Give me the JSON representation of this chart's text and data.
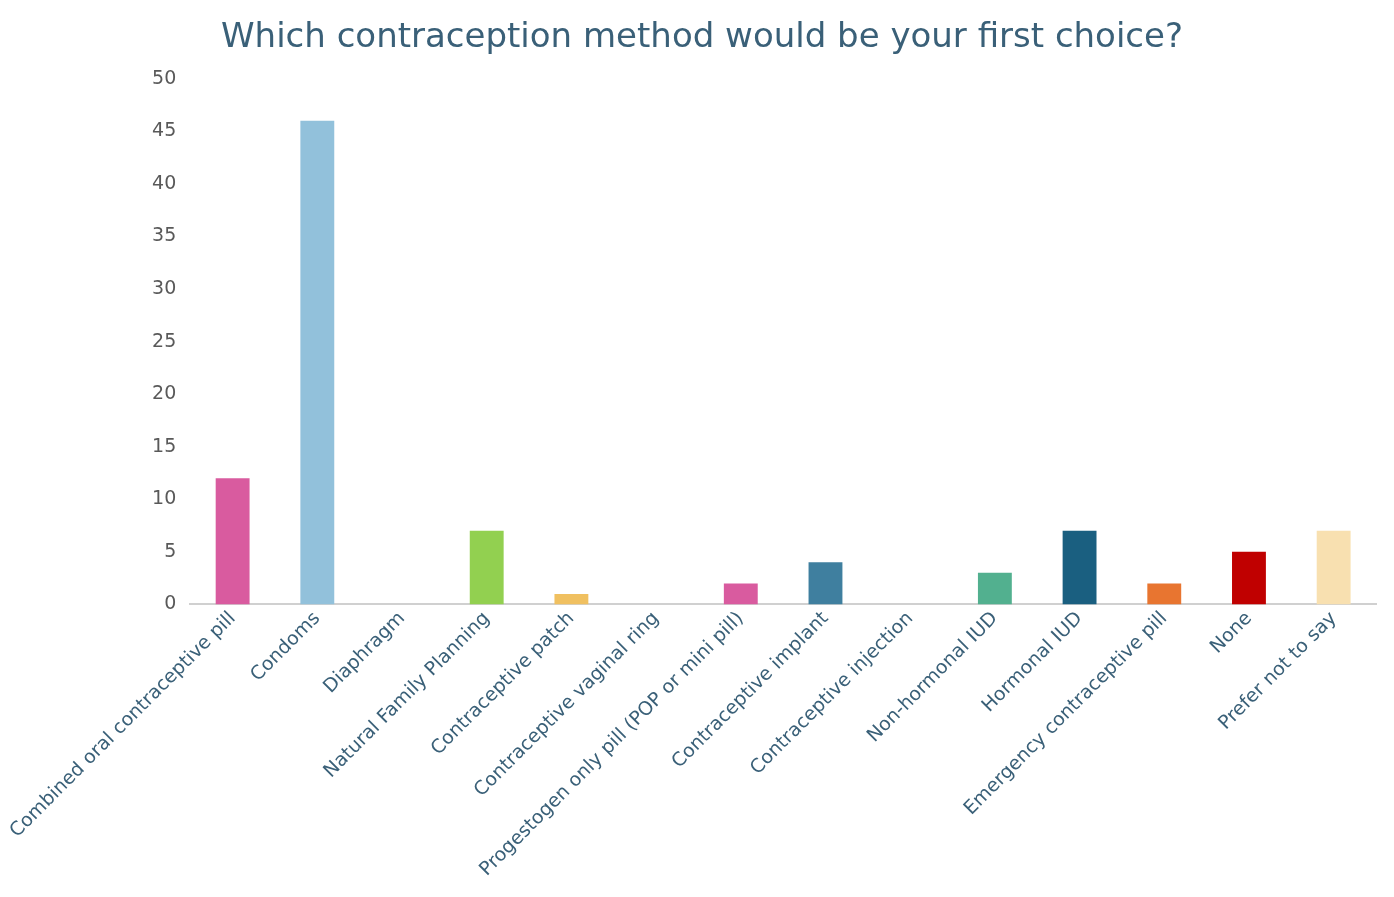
{
  "chart_data": {
    "type": "bar",
    "title": "Which contraception method would be your first choice?",
    "categories": [
      "Combined oral contraceptive pill",
      "Condoms",
      "Diaphragm",
      "Natural Family Planning",
      "Contraceptive patch",
      "Contraceptive vaginal ring",
      "Progestogen only pill (POP or mini pill)",
      "Contraceptive implant",
      "Contraceptive injection",
      "Non-hormonal IUD",
      "Hormonal IUD",
      "Emergency contraceptive pill",
      "None",
      "Prefer not to say"
    ],
    "values": [
      12,
      46,
      0,
      7,
      1,
      0,
      2,
      4,
      0,
      3,
      7,
      2,
      5,
      7
    ],
    "colors": [
      "#d95b9f",
      "#92c1db",
      "#a0a0a0",
      "#92d050",
      "#f0c060",
      "#a0a0a0",
      "#d95b9f",
      "#3f7f9f",
      "#a0a0a0",
      "#52b08f",
      "#1a5f80",
      "#e87530",
      "#c00000",
      "#f8e0b0"
    ],
    "ylim": [
      0,
      50
    ],
    "yticks": [
      0,
      5,
      10,
      15,
      20,
      25,
      30,
      35,
      40,
      45,
      50
    ],
    "grid": false,
    "legend": false
  }
}
